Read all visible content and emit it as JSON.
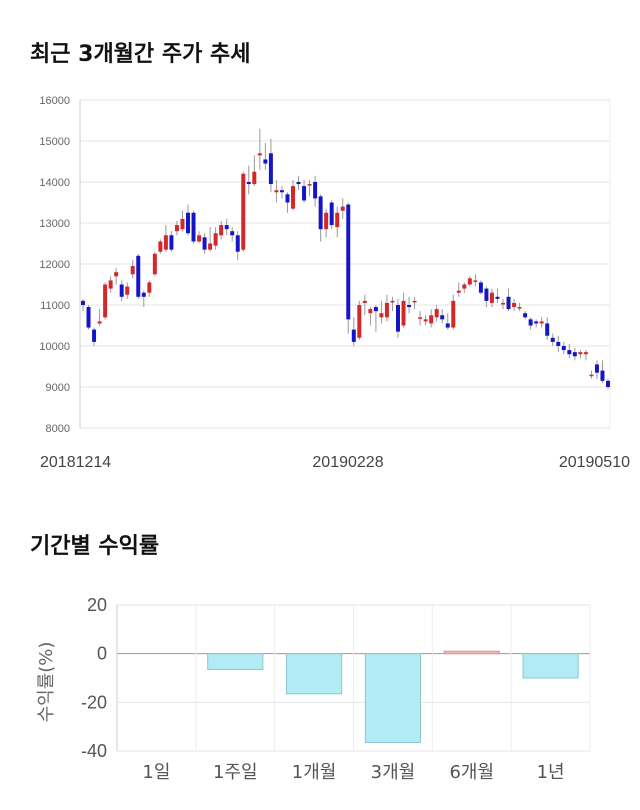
{
  "section1": {
    "title": "최근 3개월간 주가 추세"
  },
  "section2": {
    "title": "기간별 수익률"
  },
  "chart_data": [
    {
      "type": "candlestick",
      "title": "최근 3개월간 주가 추세",
      "ylim": [
        8000,
        16000
      ],
      "yticks": [
        "16000",
        "15000",
        "14000",
        "13000",
        "12000",
        "11000",
        "10000",
        "9000",
        "8000"
      ],
      "x_labels": [
        "20181214",
        "20190228",
        "20190510"
      ],
      "grid": true,
      "colors": {
        "up": "#d62728",
        "down": "#1515c8",
        "wick": "#999999"
      },
      "candles": [
        [
          11100,
          11000,
          11150,
          10850
        ],
        [
          10950,
          10450,
          11000,
          10400
        ],
        [
          10400,
          10100,
          10450,
          10000
        ],
        [
          10550,
          10600,
          10900,
          10500
        ],
        [
          10700,
          11500,
          11550,
          10650
        ],
        [
          11400,
          11600,
          11700,
          11300
        ],
        [
          11700,
          11800,
          11900,
          11500
        ],
        [
          11500,
          11200,
          11600,
          11100
        ],
        [
          11250,
          11450,
          11550,
          11150
        ],
        [
          11750,
          11950,
          12100,
          11650
        ],
        [
          12200,
          11200,
          12250,
          11150
        ],
        [
          11300,
          11200,
          11350,
          10950
        ],
        [
          11300,
          11550,
          11600,
          11200
        ],
        [
          11750,
          12250,
          12300,
          11700
        ],
        [
          12300,
          12550,
          12600,
          12250
        ],
        [
          12350,
          12700,
          12950,
          12300
        ],
        [
          12700,
          12350,
          12800,
          12300
        ],
        [
          12800,
          12950,
          13050,
          12700
        ],
        [
          12850,
          13100,
          13300,
          12800
        ],
        [
          13250,
          12750,
          13450,
          12700
        ],
        [
          13250,
          12550,
          13300,
          12500
        ],
        [
          12550,
          12700,
          12800,
          12500
        ],
        [
          12650,
          12350,
          12750,
          12250
        ],
        [
          12350,
          12500,
          12900,
          12300
        ],
        [
          12450,
          12750,
          12900,
          12350
        ],
        [
          12700,
          12950,
          13050,
          12600
        ],
        [
          12950,
          12850,
          13100,
          12700
        ],
        [
          12800,
          12700,
          12900,
          12550
        ],
        [
          12700,
          12300,
          12800,
          12100
        ],
        [
          12350,
          14200,
          14250,
          12300
        ],
        [
          14000,
          13950,
          14400,
          13700
        ],
        [
          13950,
          14250,
          14650,
          13900
        ],
        [
          14650,
          14700,
          15300,
          14300
        ],
        [
          14550,
          14450,
          14950,
          14300
        ],
        [
          14700,
          13950,
          15050,
          13750
        ],
        [
          13750,
          13800,
          14050,
          13500
        ],
        [
          13800,
          13750,
          13900,
          13600
        ],
        [
          13700,
          13500,
          13750,
          13250
        ],
        [
          13350,
          13900,
          14050,
          13300
        ],
        [
          14000,
          13950,
          14150,
          13800
        ],
        [
          13900,
          13550,
          14050,
          13500
        ],
        [
          13950,
          13950,
          14050,
          13650
        ],
        [
          14000,
          13600,
          14150,
          13400
        ],
        [
          13650,
          12850,
          13700,
          12550
        ],
        [
          12850,
          13250,
          13350,
          12650
        ],
        [
          13500,
          12950,
          13550,
          12850
        ],
        [
          12900,
          13250,
          13400,
          12650
        ],
        [
          13300,
          13400,
          13600,
          13100
        ],
        [
          13450,
          10650,
          13500,
          10300
        ],
        [
          10400,
          10100,
          10700,
          10000
        ],
        [
          10200,
          11000,
          11100,
          10150
        ],
        [
          11050,
          11100,
          11250,
          10750
        ],
        [
          10800,
          10900,
          10950,
          10500
        ],
        [
          10950,
          10850,
          11000,
          10350
        ],
        [
          10700,
          10800,
          11100,
          10550
        ],
        [
          10700,
          11050,
          11250,
          10600
        ],
        [
          11100,
          11100,
          11200,
          10850
        ],
        [
          11000,
          10350,
          11150,
          10200
        ],
        [
          10500,
          11100,
          11300,
          10450
        ],
        [
          11000,
          10950,
          11200,
          10800
        ],
        [
          11100,
          11100,
          11200,
          10900
        ],
        [
          10700,
          10700,
          10850,
          10500
        ],
        [
          10600,
          10650,
          10750,
          10500
        ],
        [
          10550,
          10750,
          10900,
          10450
        ],
        [
          10700,
          10900,
          11000,
          10600
        ],
        [
          10750,
          10650,
          10900,
          10550
        ],
        [
          10550,
          10450,
          10800,
          10400
        ],
        [
          10450,
          11100,
          11250,
          10400
        ],
        [
          11300,
          11350,
          11550,
          11200
        ],
        [
          11400,
          11500,
          11550,
          11300
        ],
        [
          11500,
          11650,
          11700,
          11450
        ],
        [
          11600,
          11600,
          11750,
          11450
        ],
        [
          11550,
          11300,
          11600,
          11250
        ],
        [
          11400,
          11100,
          11450,
          10950
        ],
        [
          11050,
          11300,
          11400,
          10950
        ],
        [
          11200,
          11150,
          11400,
          11050
        ],
        [
          11050,
          11050,
          11150,
          10900
        ],
        [
          11200,
          10900,
          11400,
          10850
        ],
        [
          10950,
          11050,
          11150,
          10850
        ],
        [
          10950,
          10950,
          11050,
          10850
        ],
        [
          10800,
          10700,
          10850,
          10650
        ],
        [
          10650,
          10500,
          10700,
          10400
        ],
        [
          10600,
          10550,
          10650,
          10450
        ],
        [
          10550,
          10600,
          10700,
          10450
        ],
        [
          10550,
          10250,
          10700,
          10150
        ],
        [
          10200,
          10100,
          10300,
          10000
        ],
        [
          10100,
          10000,
          10250,
          9850
        ],
        [
          10000,
          9900,
          10100,
          9800
        ],
        [
          9900,
          9800,
          10050,
          9700
        ],
        [
          9850,
          9750,
          9950,
          9650
        ],
        [
          9800,
          9850,
          9900,
          9700
        ],
        [
          9800,
          9850,
          9900,
          9650
        ],
        [
          9300,
          9300,
          9400,
          9200
        ],
        [
          9550,
          9350,
          9650,
          9200
        ],
        [
          9400,
          9150,
          9650,
          9100
        ],
        [
          9150,
          9000,
          9200,
          8950
        ]
      ]
    },
    {
      "type": "bar",
      "title": "기간별 수익률",
      "ylabel": "수익률(%)",
      "ylim": [
        -40,
        20
      ],
      "yticks": [
        "20",
        "0",
        "-20",
        "-40"
      ],
      "categories": [
        "1일",
        "1주일",
        "1개월",
        "3개월",
        "6개월",
        "1년"
      ],
      "values": [
        0,
        -6.5,
        -16.5,
        -36.5,
        1.0,
        -10.0
      ],
      "colors": {
        "positive": "#f7b6b5",
        "negative": "#b1ebf4"
      }
    }
  ]
}
